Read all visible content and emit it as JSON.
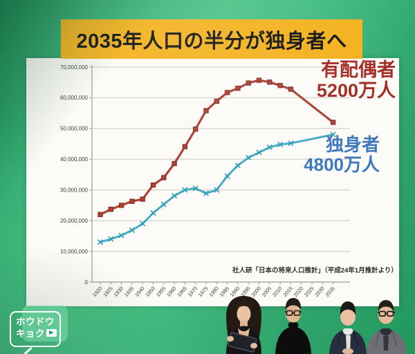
{
  "banner": {
    "title": "2035年人口の半分が独身者へ",
    "bg": "#f3b11d",
    "fg": "#121212"
  },
  "chart_data": {
    "type": "line",
    "title": "",
    "xlabel": "",
    "ylabel": "",
    "x_labels": [
      "1920",
      "1925",
      "1930",
      "1935",
      "1940",
      "1950",
      "1955",
      "1960",
      "1965",
      "1970",
      "1975",
      "1980",
      "1985",
      "1990",
      "1995",
      "2000",
      "2005",
      "2010",
      "2015",
      "2020",
      "2025",
      "2030",
      "2035"
    ],
    "y_ticks": [
      "0",
      "10,000,000",
      "20,000,000",
      "30,000,000",
      "40,000,000",
      "50,000,000",
      "60,000,000",
      "70,000,000"
    ],
    "ylim": [
      0,
      70000000
    ],
    "grid": true,
    "legend_position": "right-annotations",
    "series": [
      {
        "name": "有配偶者",
        "annotation": "5200万人",
        "marker": "square",
        "line_color": "#ae4136",
        "marker_color": "#ae4136",
        "marker_edge": "#82push2b24",
        "label_color": "#a32b24",
        "values": [
          22000000,
          23700000,
          25000000,
          26300000,
          27000000,
          31600000,
          34000000,
          38600000,
          44100000,
          49800000,
          55800000,
          58900000,
          61700000,
          63100000,
          64800000,
          65700000,
          65100000,
          64000000,
          62800000,
          null,
          null,
          null,
          52000000
        ]
      },
      {
        "name": "独身者",
        "annotation": "4800万人",
        "marker": "x",
        "line_color": "#46adc5",
        "marker_color": "#2e9cb5",
        "marker_edge": "#2e9cb5",
        "label_color": "#3e79be",
        "values": [
          13000000,
          14000000,
          15200000,
          16900000,
          19000000,
          22500000,
          25300000,
          28100000,
          30000000,
          30500000,
          28900000,
          30000000,
          34500000,
          38000000,
          40500000,
          42200000,
          43900000,
          44800000,
          45200000,
          null,
          null,
          null,
          48000000
        ]
      }
    ],
    "source": "社人研「日本の将来人口推計」（平成24年1月推計より）"
  },
  "logo": {
    "line1": "ホウドウ",
    "line2": "キョク"
  }
}
